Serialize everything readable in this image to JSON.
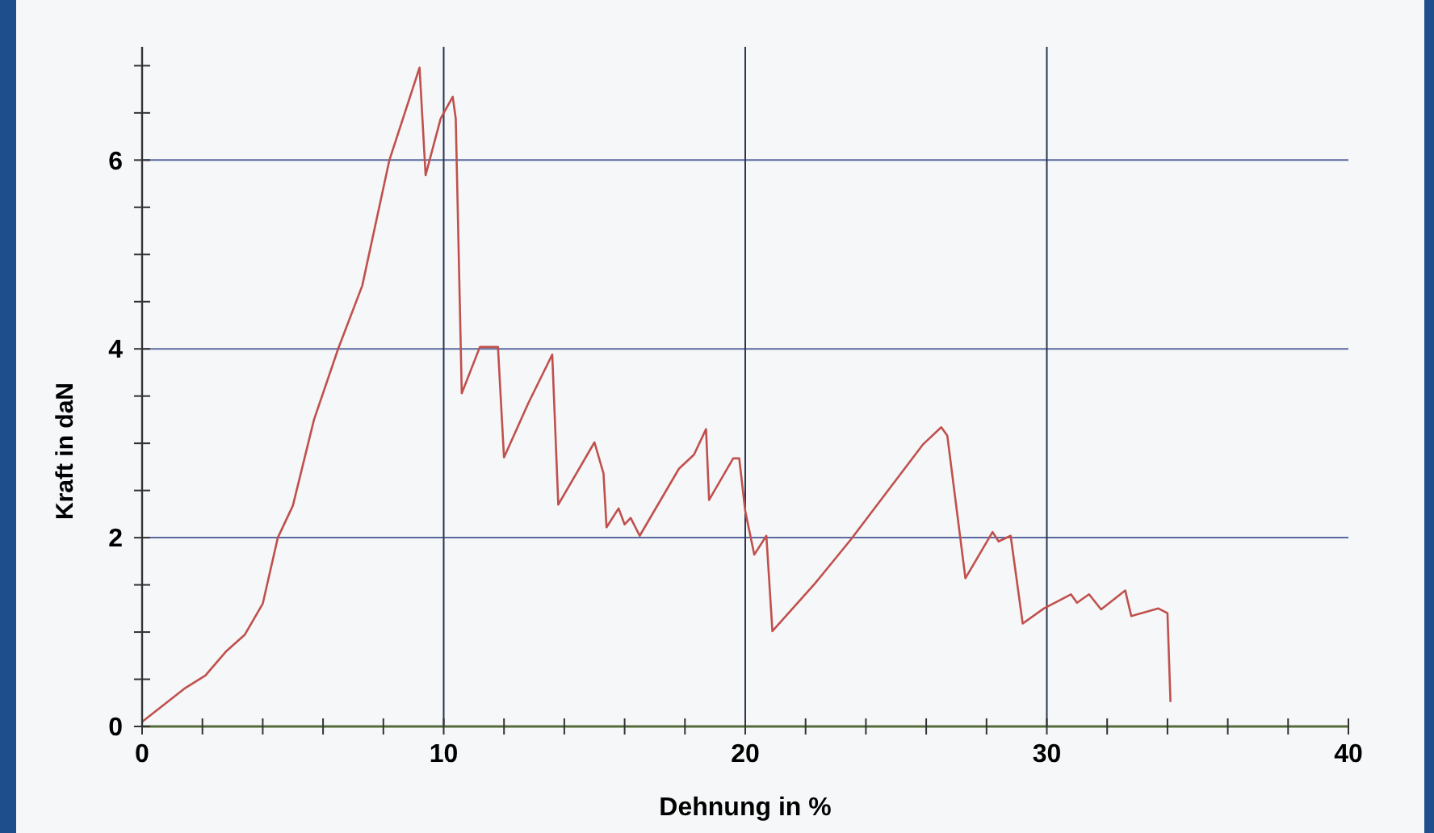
{
  "chart_data": {
    "type": "line",
    "xlabel": "Dehnung in %",
    "ylabel": "Kraft in daN",
    "xlim": [
      0,
      40
    ],
    "ylim": [
      0,
      7.2
    ],
    "xticks": [
      0,
      {
        "value": 2,
        "label": null
      },
      {
        "value": 4,
        "label": null
      },
      {
        "value": 6,
        "label": null
      },
      {
        "value": 8,
        "label": null
      },
      10,
      {
        "value": 12,
        "label": null
      },
      {
        "value": 14,
        "label": null
      },
      {
        "value": 16,
        "label": null
      },
      {
        "value": 18,
        "label": null
      },
      20,
      {
        "value": 22,
        "label": null
      },
      {
        "value": 24,
        "label": null
      },
      {
        "value": 26,
        "label": null
      },
      {
        "value": 28,
        "label": null
      },
      30,
      {
        "value": 32,
        "label": null
      },
      {
        "value": 34,
        "label": null
      },
      {
        "value": 36,
        "label": null
      },
      {
        "value": 38,
        "label": null
      },
      40
    ],
    "yticks": [
      0,
      {
        "value": 0.5,
        "label": null
      },
      {
        "value": 1,
        "label": null
      },
      {
        "value": 1.5,
        "label": null
      },
      2,
      {
        "value": 2.5,
        "label": null
      },
      {
        "value": 3,
        "label": null
      },
      {
        "value": 3.5,
        "label": null
      },
      4,
      {
        "value": 4.5,
        "label": null
      },
      {
        "value": 5,
        "label": null
      },
      {
        "value": 5.5,
        "label": null
      },
      6,
      {
        "value": 6.5,
        "label": null
      },
      {
        "value": 7,
        "label": null
      }
    ],
    "grid": true,
    "marker": "none",
    "line_style": "solid",
    "series": [
      {
        "color": "#c0504d",
        "x": [
          0,
          1.4,
          2.1,
          2.8,
          3.4,
          4.0,
          4.5,
          5.0,
          5.7,
          6.5,
          7.3,
          8.2,
          9.2,
          9.4,
          9.9,
          10.3,
          10.4,
          10.6,
          11.2,
          11.8,
          12.0,
          12.8,
          13.6,
          13.8,
          15.0,
          15.3,
          15.4,
          15.8,
          16.0,
          16.2,
          16.5,
          17.8,
          18.3,
          18.7,
          18.8,
          19.6,
          19.8,
          20.0,
          20.3,
          20.7,
          20.9,
          22.3,
          23.5,
          25.9,
          26.5,
          26.7,
          27.3,
          28.2,
          28.4,
          28.8,
          29.2,
          29.9,
          30.8,
          31.0,
          31.4,
          31.8,
          32.6,
          32.8,
          33.7,
          34.0,
          34.1
        ],
        "values": [
          0.05,
          0.4,
          0.54,
          0.8,
          0.97,
          1.3,
          2.0,
          2.34,
          3.25,
          4.0,
          4.67,
          6.0,
          6.98,
          5.84,
          6.44,
          6.67,
          6.44,
          3.53,
          4.02,
          4.02,
          2.85,
          3.42,
          3.94,
          2.35,
          3.01,
          2.68,
          2.11,
          2.31,
          2.14,
          2.21,
          2.02,
          2.73,
          2.88,
          3.15,
          2.4,
          2.84,
          2.84,
          2.28,
          1.82,
          2.02,
          1.01,
          1.51,
          1.98,
          2.99,
          3.17,
          3.08,
          1.57,
          2.06,
          1.96,
          2.02,
          1.09,
          1.25,
          1.4,
          1.31,
          1.4,
          1.24,
          1.44,
          1.17,
          1.25,
          1.2,
          0.26
        ]
      }
    ]
  }
}
